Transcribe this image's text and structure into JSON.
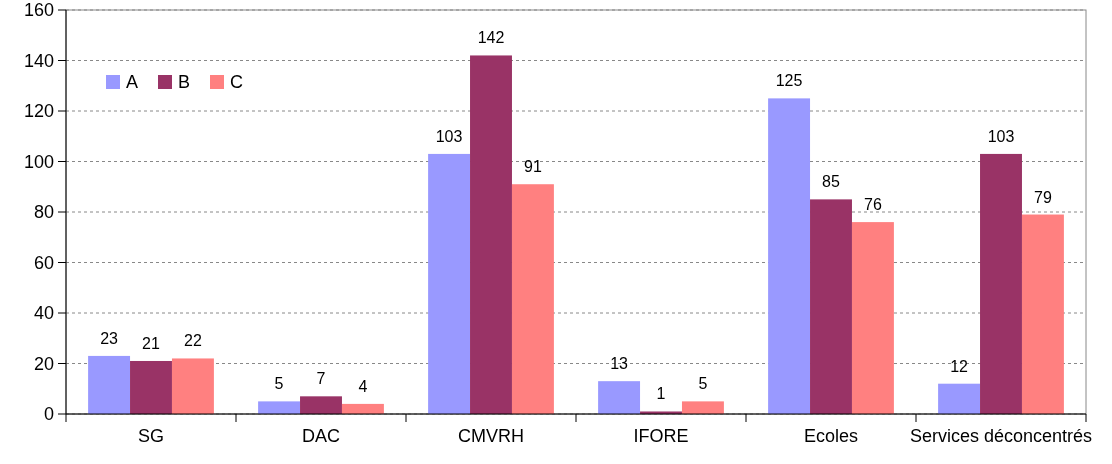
{
  "chart_data": {
    "type": "bar",
    "categories": [
      "SG",
      "DAC",
      "CMVRH",
      "IFORE",
      "Ecoles",
      "Services déconcentrés"
    ],
    "series": [
      {
        "name": "A",
        "color": "#9999ff",
        "values": [
          23,
          5,
          103,
          13,
          125,
          12
        ]
      },
      {
        "name": "B",
        "color": "#993366",
        "values": [
          21,
          7,
          142,
          1,
          85,
          103
        ]
      },
      {
        "name": "C",
        "color": "#ff8080",
        "values": [
          22,
          4,
          91,
          5,
          76,
          79
        ]
      }
    ],
    "ylim": [
      0,
      160
    ],
    "yticks": [
      0,
      20,
      40,
      60,
      80,
      100,
      120,
      140,
      160
    ],
    "grid": "y",
    "legend": "top left",
    "data_labels": true
  }
}
